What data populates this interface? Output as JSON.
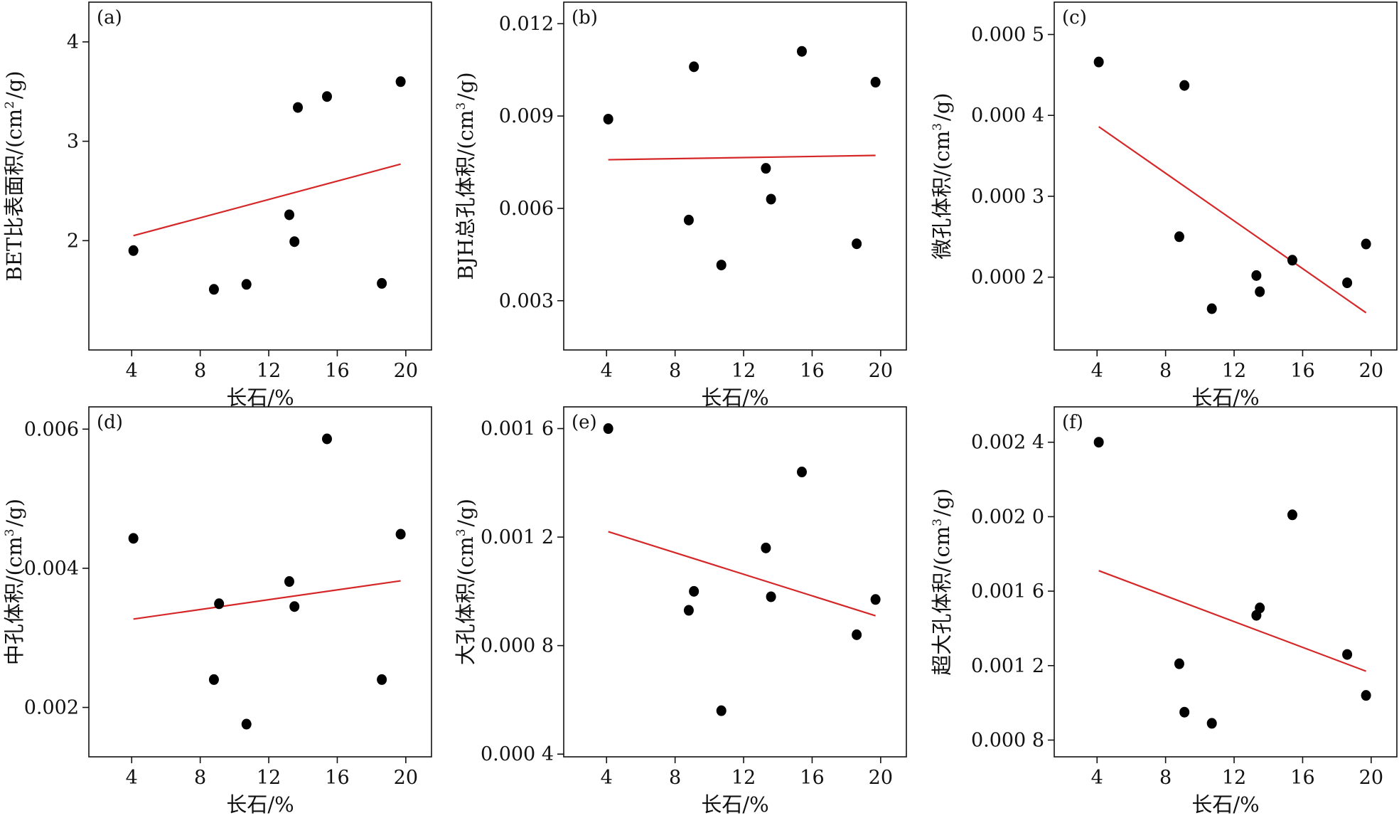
{
  "chart_data": [
    {
      "type": "scatter",
      "panel_label": "(a)",
      "xlabel": "长石/%",
      "ylabel": "BET比表面积/(cm²/g)",
      "xlim": [
        1.5,
        21.5
      ],
      "ylim": [
        0.9,
        4.4
      ],
      "x_ticks": [
        4,
        8,
        12,
        16,
        20
      ],
      "x_tick_labels": [
        "4",
        "8",
        "12",
        "16",
        "20"
      ],
      "y_ticks": [
        2,
        3,
        4
      ],
      "y_tick_labels": [
        "2",
        "3",
        "4"
      ],
      "points": [
        [
          4.1,
          1.9
        ],
        [
          8.8,
          1.51
        ],
        [
          10.7,
          1.56
        ],
        [
          13.2,
          2.26
        ],
        [
          13.5,
          1.99
        ],
        [
          13.7,
          3.34
        ],
        [
          15.4,
          3.45
        ],
        [
          18.6,
          1.57
        ],
        [
          19.7,
          3.6
        ]
      ],
      "trendline": [
        [
          4.1,
          2.05
        ],
        [
          19.7,
          2.77
        ]
      ],
      "marker_color": "#000000",
      "line_color": "#d62728"
    },
    {
      "type": "scatter",
      "panel_label": "(b)",
      "xlabel": "长石/%",
      "ylabel": "BJH总孔体积/(cm³/g)",
      "xlim": [
        1.5,
        21.5
      ],
      "ylim": [
        0.0014,
        0.0127
      ],
      "x_ticks": [
        4,
        8,
        12,
        16,
        20
      ],
      "x_tick_labels": [
        "4",
        "8",
        "12",
        "16",
        "20"
      ],
      "y_ticks": [
        0.003,
        0.006,
        0.009,
        0.012
      ],
      "y_tick_labels": [
        "0.003",
        "0.006",
        "0.009",
        "0.012"
      ],
      "points": [
        [
          4.1,
          0.0089
        ],
        [
          8.8,
          0.00562
        ],
        [
          9.1,
          0.0106
        ],
        [
          10.7,
          0.00416
        ],
        [
          13.3,
          0.0073
        ],
        [
          13.6,
          0.0063
        ],
        [
          15.4,
          0.0111
        ],
        [
          18.6,
          0.00485
        ],
        [
          19.7,
          0.0101
        ]
      ],
      "trendline": [
        [
          4.1,
          0.00758
        ],
        [
          19.7,
          0.00772
        ]
      ],
      "marker_color": "#000000",
      "line_color": "#d62728"
    },
    {
      "type": "scatter",
      "panel_label": "(c)",
      "xlabel": "长石/%",
      "ylabel": "微孔体积/(cm³/g)",
      "xlim": [
        1.5,
        21.5
      ],
      "ylim": [
        0.00011,
        0.00054
      ],
      "x_ticks": [
        4,
        8,
        12,
        16,
        20
      ],
      "x_tick_labels": [
        "4",
        "8",
        "12",
        "16",
        "20"
      ],
      "y_ticks": [
        0.0002,
        0.0003,
        0.0004,
        0.0005
      ],
      "y_tick_labels": [
        "0.000 2",
        "0.000 3",
        "0.000 4",
        "0.000 5"
      ],
      "points": [
        [
          4.1,
          0.000466
        ],
        [
          8.8,
          0.00025
        ],
        [
          9.1,
          0.000437
        ],
        [
          10.7,
          0.000161
        ],
        [
          13.3,
          0.000202
        ],
        [
          13.5,
          0.000182
        ],
        [
          15.4,
          0.000221
        ],
        [
          18.6,
          0.000193
        ],
        [
          19.7,
          0.000241
        ]
      ],
      "trendline": [
        [
          4.1,
          0.000386
        ],
        [
          19.7,
          0.000156
        ]
      ],
      "marker_color": "#000000",
      "line_color": "#d62728"
    },
    {
      "type": "scatter",
      "panel_label": "(d)",
      "xlabel": "长石/%",
      "ylabel": "中孔体积/(cm³/g)",
      "xlim": [
        1.5,
        21.5
      ],
      "ylim": [
        0.00129,
        0.00632
      ],
      "x_ticks": [
        4,
        8,
        12,
        16,
        20
      ],
      "x_tick_labels": [
        "4",
        "8",
        "12",
        "16",
        "20"
      ],
      "y_ticks": [
        0.002,
        0.004,
        0.006
      ],
      "y_tick_labels": [
        "0.002",
        "0.004",
        "0.006"
      ],
      "points": [
        [
          4.1,
          0.00443
        ],
        [
          8.8,
          0.0024
        ],
        [
          9.1,
          0.00349
        ],
        [
          10.7,
          0.00176
        ],
        [
          13.2,
          0.00381
        ],
        [
          13.5,
          0.00345
        ],
        [
          15.4,
          0.00586
        ],
        [
          18.6,
          0.0024
        ],
        [
          19.7,
          0.00449
        ]
      ],
      "trendline": [
        [
          4.1,
          0.00327
        ],
        [
          19.7,
          0.00382
        ]
      ],
      "marker_color": "#000000",
      "line_color": "#d62728"
    },
    {
      "type": "scatter",
      "panel_label": "(e)",
      "xlabel": "长石/%",
      "ylabel": "大孔体积/(cm³/g)",
      "xlim": [
        1.5,
        21.5
      ],
      "ylim": [
        0.00039,
        0.00168
      ],
      "x_ticks": [
        4,
        8,
        12,
        16,
        20
      ],
      "x_tick_labels": [
        "4",
        "8",
        "12",
        "16",
        "20"
      ],
      "y_ticks": [
        0.0004,
        0.0008,
        0.0012,
        0.0016
      ],
      "y_tick_labels": [
        "0.000 4",
        "0.000 8",
        "0.001 2",
        "0.001 6"
      ],
      "points": [
        [
          4.1,
          0.0016
        ],
        [
          8.8,
          0.00093
        ],
        [
          9.1,
          0.001
        ],
        [
          10.7,
          0.00056
        ],
        [
          13.3,
          0.00116
        ],
        [
          13.6,
          0.00098
        ],
        [
          15.4,
          0.00144
        ],
        [
          18.6,
          0.00084
        ],
        [
          19.7,
          0.00097
        ]
      ],
      "trendline": [
        [
          4.1,
          0.00122
        ],
        [
          19.7,
          0.00091
        ]
      ],
      "marker_color": "#000000",
      "line_color": "#d62728"
    },
    {
      "type": "scatter",
      "panel_label": "(f)",
      "xlabel": "长石/%",
      "ylabel": "超大孔体积/(cm³/g)",
      "xlim": [
        1.5,
        21.5
      ],
      "ylim": [
        0.00071,
        0.00259
      ],
      "x_ticks": [
        4,
        8,
        12,
        16,
        20
      ],
      "x_tick_labels": [
        "4",
        "8",
        "12",
        "16",
        "20"
      ],
      "y_ticks": [
        0.0008,
        0.0012,
        0.0016,
        0.002,
        0.0024
      ],
      "y_tick_labels": [
        "0.000 8",
        "0.001 2",
        "0.001 6",
        "0.002 0",
        "0.002 4"
      ],
      "points": [
        [
          4.1,
          0.0024
        ],
        [
          8.8,
          0.00121
        ],
        [
          9.1,
          0.00095
        ],
        [
          10.7,
          0.00089
        ],
        [
          13.3,
          0.00147
        ],
        [
          13.5,
          0.00151
        ],
        [
          15.4,
          0.00201
        ],
        [
          18.6,
          0.00126
        ],
        [
          19.7,
          0.00104
        ]
      ],
      "trendline": [
        [
          4.1,
          0.00171
        ],
        [
          19.7,
          0.00117
        ]
      ],
      "marker_color": "#000000",
      "line_color": "#d62728"
    }
  ]
}
